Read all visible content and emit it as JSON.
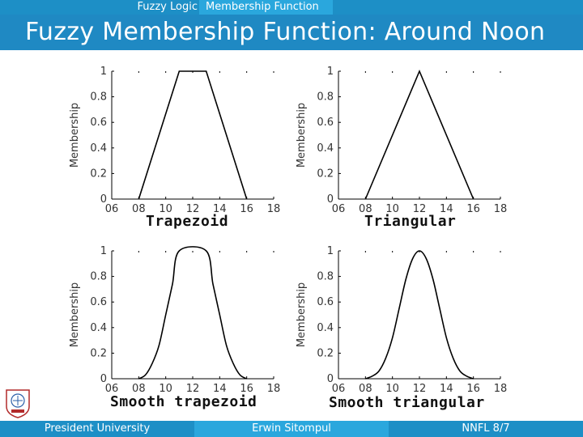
{
  "header": {
    "breadcrumb_course": "Fuzzy Logic",
    "breadcrumb_topic": "Membership Function"
  },
  "slide": {
    "title": "Fuzzy Membership Function: Around Noon"
  },
  "footer": {
    "institution": "President University",
    "author": "Erwin Sitompul",
    "page": "NNFL 8/7"
  },
  "colors": {
    "bar": "#1d8fc6",
    "title_bar": "#1f89c3",
    "highlight": "#2aa7dd"
  },
  "icons": {
    "logo": "president-university-logo"
  },
  "chart_data": [
    {
      "type": "line",
      "caption": "Trapezoid",
      "ylabel": "Membership",
      "xticks": [
        "06",
        "08",
        "10",
        "12",
        "14",
        "16",
        "18"
      ],
      "yticks": [
        "0",
        "0.2",
        "0.4",
        "0.6",
        "0.8",
        "1"
      ],
      "xlim": [
        6,
        18
      ],
      "ylim": [
        0,
        1
      ],
      "x": [
        8,
        11,
        13,
        16
      ],
      "y": [
        0,
        1,
        1,
        0
      ]
    },
    {
      "type": "line",
      "caption": "Triangular",
      "ylabel": "Membership",
      "xticks": [
        "06",
        "08",
        "10",
        "12",
        "14",
        "16",
        "18"
      ],
      "yticks": [
        "0",
        "0.2",
        "0.4",
        "0.6",
        "0.8",
        "1"
      ],
      "xlim": [
        6,
        18
      ],
      "ylim": [
        0,
        1
      ],
      "x": [
        8,
        12,
        16
      ],
      "y": [
        0,
        1,
        0
      ]
    },
    {
      "type": "line",
      "caption": "Smooth trapezoid",
      "ylabel": "Membership",
      "xticks": [
        "06",
        "08",
        "10",
        "12",
        "14",
        "16",
        "18"
      ],
      "yticks": [
        "0",
        "0.2",
        "0.4",
        "0.6",
        "0.8",
        "1"
      ],
      "xlim": [
        6,
        18
      ],
      "ylim": [
        0,
        1
      ],
      "x": [
        8,
        8.5,
        9,
        9.5,
        10,
        10.5,
        11,
        13,
        13.5,
        14,
        14.5,
        15,
        15.5,
        16
      ],
      "y": [
        0,
        0.03,
        0.12,
        0.26,
        0.5,
        0.74,
        1,
        1,
        0.74,
        0.5,
        0.26,
        0.12,
        0.03,
        0
      ]
    },
    {
      "type": "line",
      "caption": "Smooth triangular",
      "ylabel": "Membership",
      "xticks": [
        "06",
        "08",
        "10",
        "12",
        "14",
        "16",
        "18"
      ],
      "yticks": [
        "0",
        "0.2",
        "0.4",
        "0.6",
        "0.8",
        "1"
      ],
      "xlim": [
        6,
        18
      ],
      "ylim": [
        0,
        1
      ],
      "x": [
        8,
        8.5,
        9,
        9.5,
        10,
        10.5,
        11,
        11.5,
        12,
        12.5,
        13,
        13.5,
        14,
        14.5,
        15,
        15.5,
        16
      ],
      "y": [
        0,
        0.02,
        0.06,
        0.16,
        0.32,
        0.55,
        0.78,
        0.94,
        1,
        0.94,
        0.78,
        0.55,
        0.32,
        0.16,
        0.06,
        0.02,
        0
      ]
    }
  ]
}
